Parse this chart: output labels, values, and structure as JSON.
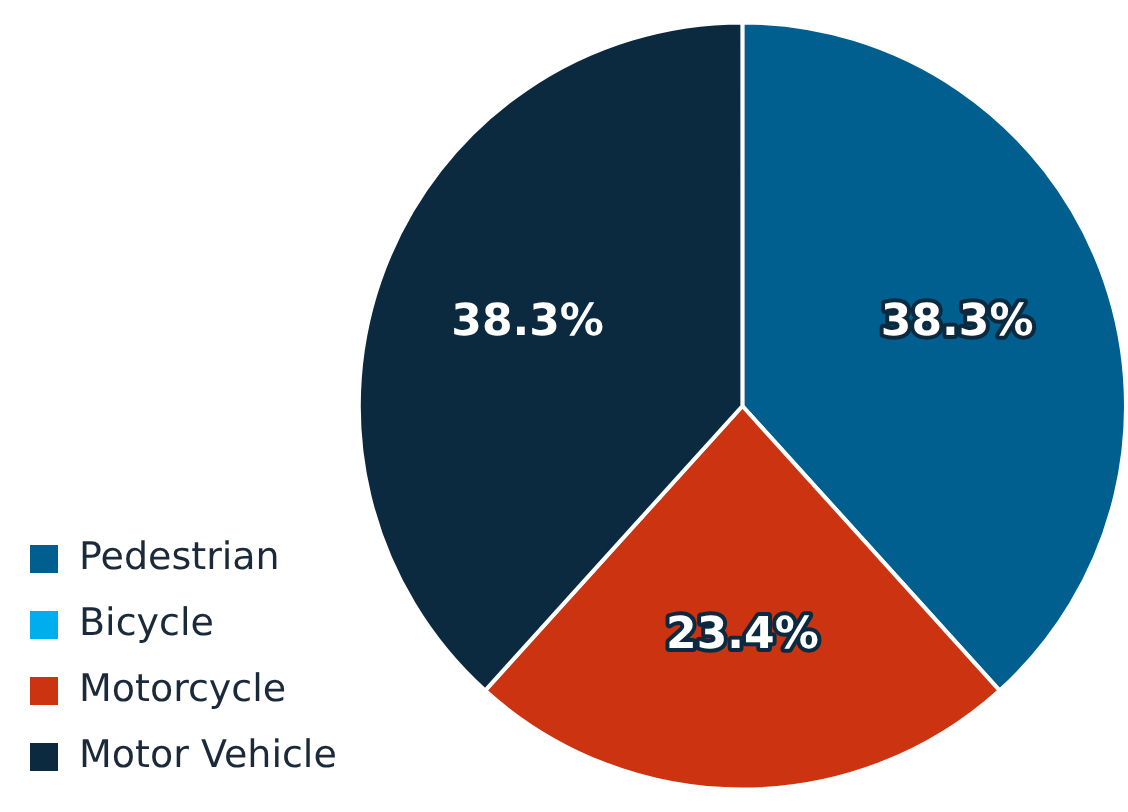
{
  "chart_data": {
    "type": "pie",
    "categories": [
      "Pedestrian",
      "Bicycle",
      "Motorcycle",
      "Motor Vehicle"
    ],
    "values": [
      38.3,
      0,
      23.4,
      38.3
    ],
    "colors": [
      "#005f8f",
      "#00aeef",
      "#cc3311",
      "#0b2a3f"
    ],
    "value_labels": [
      "38.3%",
      null,
      "23.4%",
      "38.3%"
    ],
    "legend": "bottom left"
  }
}
